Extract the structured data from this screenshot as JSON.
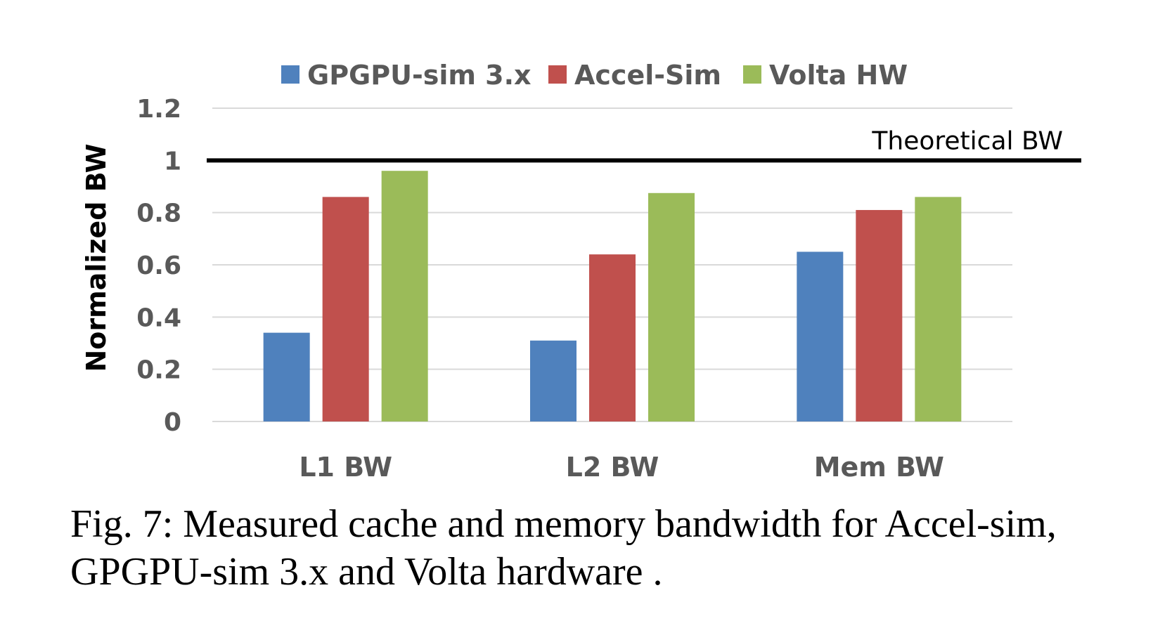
{
  "chart_data": {
    "type": "bar",
    "categories": [
      "L1 BW",
      "L2 BW",
      "Mem BW"
    ],
    "series": [
      {
        "name": "GPGPU-sim 3.x",
        "color": "#4F81BD",
        "values": [
          0.34,
          0.31,
          0.65
        ]
      },
      {
        "name": "Accel-Sim",
        "color": "#C0504D",
        "values": [
          0.86,
          0.64,
          0.81
        ]
      },
      {
        "name": "Volta HW",
        "color": "#9BBB59",
        "values": [
          0.96,
          0.875,
          0.86
        ]
      }
    ],
    "ylabel": "Normalized BW",
    "ylim": [
      0,
      1.2
    ],
    "yticks": [
      "0",
      "0.2",
      "0.4",
      "0.6",
      "0.8",
      "1",
      "1.2"
    ],
    "grid": true,
    "legend": "top",
    "reference_line": {
      "value": 1,
      "label": "Theoretical BW",
      "color": "#000000"
    }
  },
  "caption": "Fig. 7: Measured cache and memory bandwidth for Accel-sim, GPGPU-sim 3.x and Volta hardware ."
}
